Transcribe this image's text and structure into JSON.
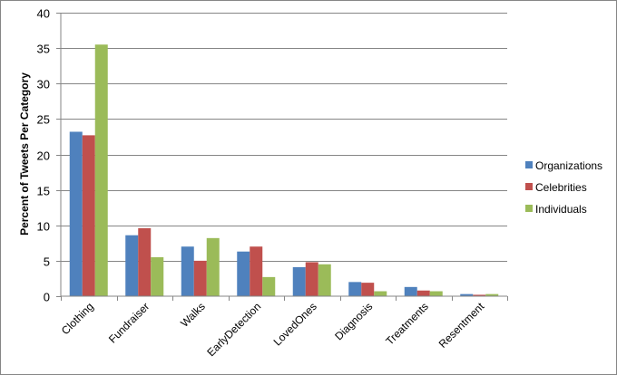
{
  "chart_data": {
    "type": "bar",
    "title": "",
    "xlabel": "",
    "ylabel": "Percent of Tweets Per Category",
    "ylim": [
      0,
      40
    ],
    "yticks": [
      0,
      5,
      10,
      15,
      20,
      25,
      30,
      35,
      40
    ],
    "grid": true,
    "legend_position": "right",
    "categories": [
      "Clothing",
      "Fundraiser",
      "Walks",
      "EarlyDetection",
      "LovedOnes",
      "Diagnosis",
      "Treatments",
      "Resentment"
    ],
    "series": [
      {
        "name": "Organizations",
        "color": "#4F81BD",
        "values": [
          23.2,
          8.6,
          7.0,
          6.3,
          4.1,
          2.0,
          1.3,
          0.3
        ]
      },
      {
        "name": "Celebrities",
        "color": "#C0504D",
        "values": [
          22.7,
          9.6,
          5.0,
          7.0,
          4.8,
          1.9,
          0.8,
          0.2
        ]
      },
      {
        "name": "Individuals",
        "color": "#9BBB59",
        "values": [
          35.5,
          5.5,
          8.2,
          2.7,
          4.5,
          0.7,
          0.7,
          0.3
        ]
      }
    ]
  }
}
